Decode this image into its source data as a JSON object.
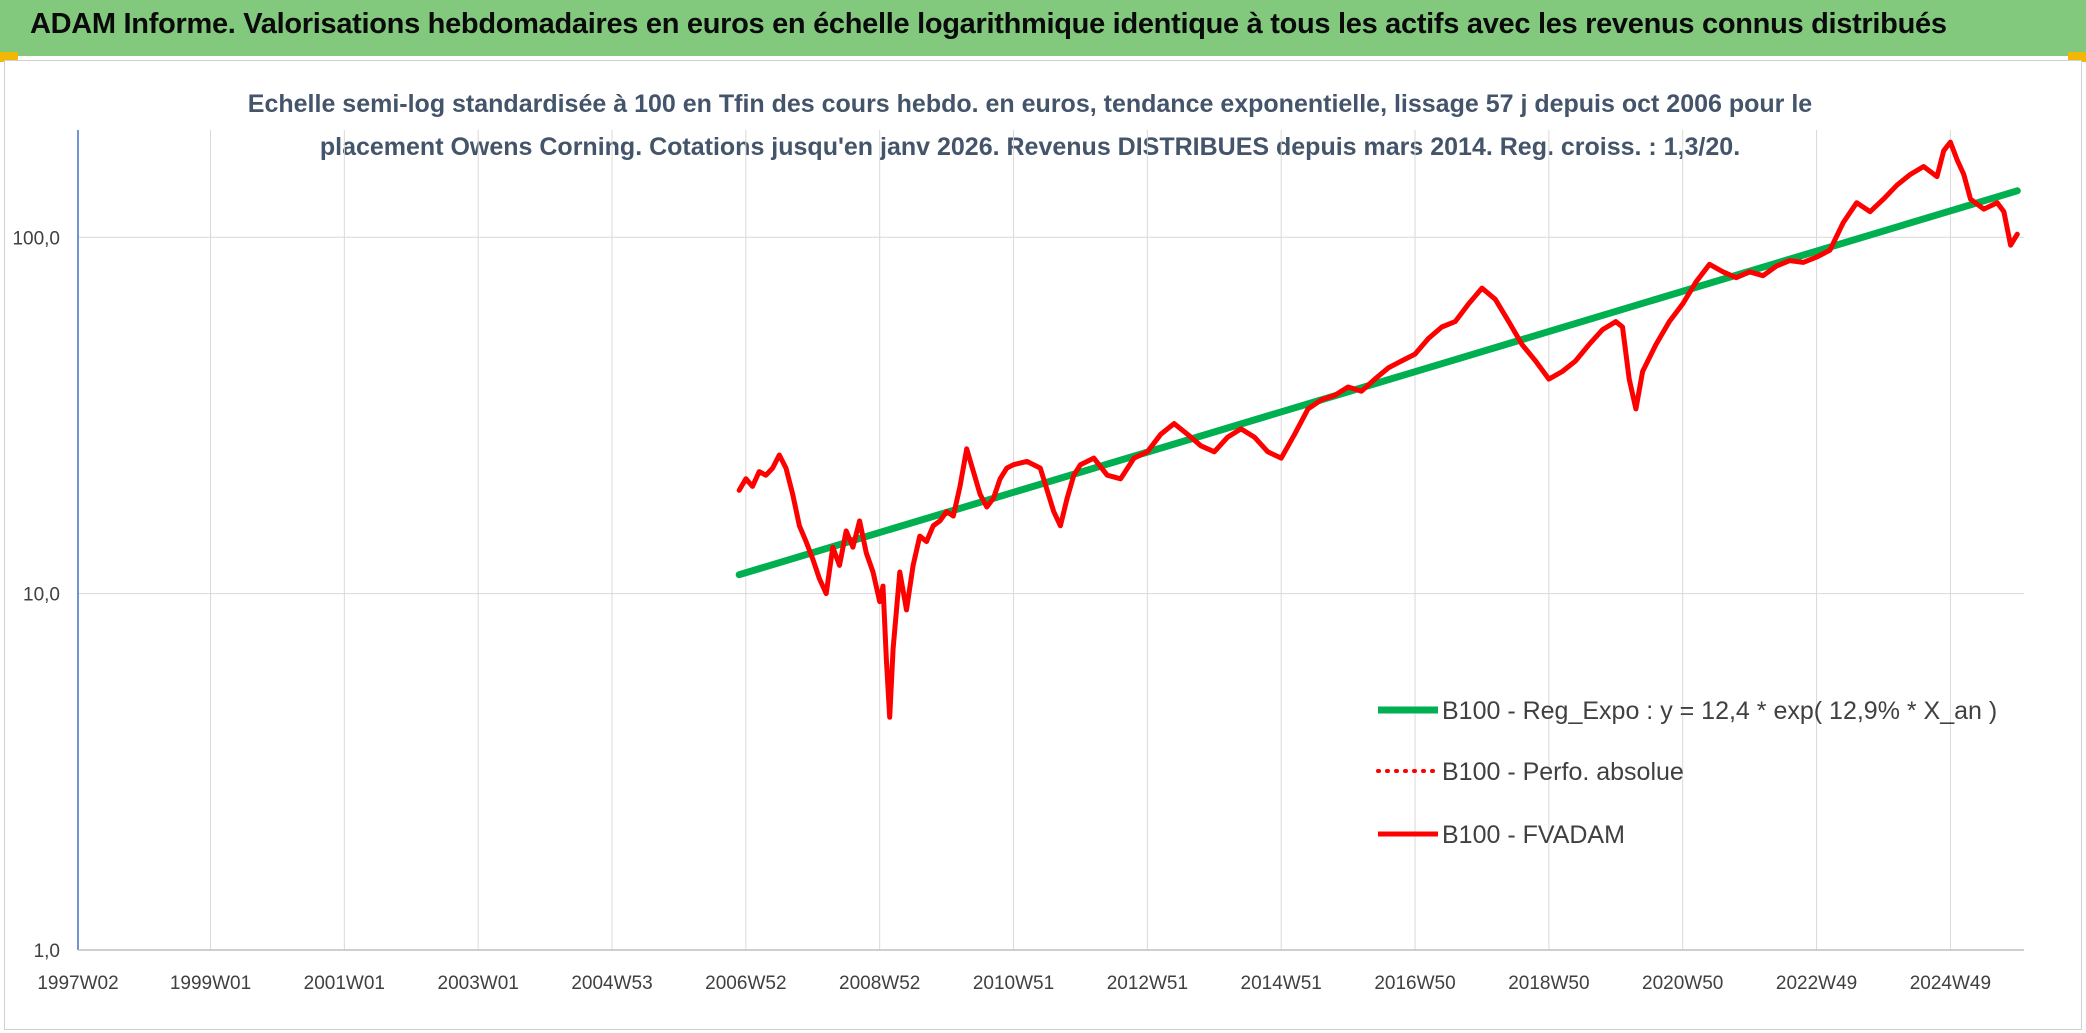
{
  "header": {
    "title": "ADAM Informe. Valorisations hebdomadaires en euros en échelle logarithmique identique à tous les actifs avec les revenus connus distribués"
  },
  "colors": {
    "banner": "#82c97e",
    "regression": "#00b050",
    "fvadam": "#ff0000",
    "axis": "#4472c4",
    "grid": "#d9d9d9",
    "corner": "#f2b705"
  },
  "chart_data": {
    "type": "line",
    "title_line1": "Echelle semi-log standardisée à 100 en Tfin des cours hebdo. en euros, tendance exponentielle, lissage 57 j depuis oct 2006 pour le",
    "title_line2": "placement Owens Corning. Cotations jusqu'en janv 2026. Revenus DISTRIBUES depuis mars 2014. Reg. croiss. : 1,3/20.",
    "xlabel": "",
    "ylabel": "",
    "y_scale": "log",
    "ylim": [
      1,
      200
    ],
    "xlim": [
      1997.02,
      2026.1
    ],
    "y_ticks": [
      {
        "value": 1,
        "label": "1,0"
      },
      {
        "value": 10,
        "label": "10,0"
      },
      {
        "value": 100,
        "label": "100,0"
      }
    ],
    "x_ticks": [
      {
        "value": 1997.02,
        "label": "1997W02"
      },
      {
        "value": 1999.0,
        "label": "1999W01"
      },
      {
        "value": 2001.0,
        "label": "2001W01"
      },
      {
        "value": 2003.0,
        "label": "2003W01"
      },
      {
        "value": 2005.0,
        "label": "2004W53"
      },
      {
        "value": 2007.0,
        "label": "2006W52"
      },
      {
        "value": 2009.0,
        "label": "2008W52"
      },
      {
        "value": 2011.0,
        "label": "2010W51"
      },
      {
        "value": 2013.0,
        "label": "2012W51"
      },
      {
        "value": 2015.0,
        "label": "2014W51"
      },
      {
        "value": 2017.0,
        "label": "2016W50"
      },
      {
        "value": 2019.0,
        "label": "2018W50"
      },
      {
        "value": 2021.0,
        "label": "2020W50"
      },
      {
        "value": 2023.0,
        "label": "2022W49"
      },
      {
        "value": 2025.0,
        "label": "2024W49"
      }
    ],
    "grid": true,
    "legend_position": "bottom-right",
    "series": [
      {
        "name": "B100 - Reg_Expo : y = 12,4 * exp( 12,9% *  X_an )",
        "style": "solid-thick",
        "color": "#00b050",
        "x": [
          2006.9,
          2026.0
        ],
        "y": [
          11.3,
          135
        ]
      },
      {
        "name": "B100 - Perfo. absolue",
        "style": "dotted",
        "color": "#ff0000",
        "x": [],
        "y": []
      },
      {
        "name": "B100 - FVADAM",
        "style": "solid",
        "color": "#ff0000",
        "x": [
          2006.9,
          2007.0,
          2007.1,
          2007.2,
          2007.3,
          2007.4,
          2007.5,
          2007.6,
          2007.7,
          2007.8,
          2007.9,
          2008.0,
          2008.1,
          2008.2,
          2008.3,
          2008.4,
          2008.5,
          2008.6,
          2008.7,
          2008.8,
          2008.9,
          2009.0,
          2009.05,
          2009.1,
          2009.15,
          2009.2,
          2009.3,
          2009.4,
          2009.5,
          2009.6,
          2009.7,
          2009.8,
          2009.9,
          2010.0,
          2010.1,
          2010.2,
          2010.3,
          2010.4,
          2010.5,
          2010.6,
          2010.7,
          2010.8,
          2010.9,
          2011.0,
          2011.2,
          2011.4,
          2011.6,
          2011.7,
          2011.8,
          2011.9,
          2012.0,
          2012.2,
          2012.4,
          2012.6,
          2012.8,
          2013.0,
          2013.2,
          2013.4,
          2013.6,
          2013.8,
          2014.0,
          2014.2,
          2014.4,
          2014.6,
          2014.8,
          2015.0,
          2015.2,
          2015.4,
          2015.6,
          2015.8,
          2016.0,
          2016.2,
          2016.4,
          2016.6,
          2016.8,
          2017.0,
          2017.2,
          2017.4,
          2017.6,
          2017.8,
          2018.0,
          2018.2,
          2018.4,
          2018.6,
          2018.8,
          2019.0,
          2019.2,
          2019.4,
          2019.6,
          2019.8,
          2020.0,
          2020.1,
          2020.2,
          2020.3,
          2020.4,
          2020.6,
          2020.8,
          2021.0,
          2021.2,
          2021.4,
          2021.6,
          2021.8,
          2022.0,
          2022.2,
          2022.4,
          2022.6,
          2022.8,
          2023.0,
          2023.2,
          2023.4,
          2023.6,
          2023.8,
          2024.0,
          2024.2,
          2024.4,
          2024.6,
          2024.8,
          2024.9,
          2025.0,
          2025.1,
          2025.2,
          2025.3,
          2025.5,
          2025.7,
          2025.8,
          2025.9,
          2026.0
        ],
        "y": [
          19.5,
          21.0,
          20.0,
          22.0,
          21.5,
          22.5,
          24.5,
          22.5,
          19.0,
          15.5,
          14.0,
          12.5,
          11.0,
          10.0,
          13.5,
          12.0,
          15.0,
          13.5,
          16.0,
          13.0,
          11.5,
          9.5,
          10.5,
          6.5,
          4.5,
          7.0,
          11.5,
          9.0,
          12.0,
          14.5,
          14.0,
          15.5,
          16.0,
          17.0,
          16.5,
          20.0,
          25.5,
          22.0,
          19.0,
          17.5,
          18.5,
          21.0,
          22.5,
          23.0,
          23.5,
          22.5,
          17.0,
          15.5,
          18.5,
          21.5,
          23.0,
          24.0,
          21.5,
          21.0,
          24.0,
          25.0,
          28.0,
          30.0,
          28.0,
          26.0,
          25.0,
          27.5,
          29.0,
          27.5,
          25.0,
          24.0,
          28.0,
          33.0,
          35.0,
          36.0,
          38.0,
          37.0,
          40.0,
          43.0,
          45.0,
          47.0,
          52.0,
          56.0,
          58.0,
          65.0,
          72.0,
          67.0,
          58.0,
          50.0,
          45.0,
          40.0,
          42.0,
          45.0,
          50.0,
          55.0,
          58.0,
          56.0,
          40.0,
          33.0,
          42.0,
          50.0,
          58.0,
          65.0,
          75.0,
          84.0,
          80.0,
          77.0,
          80.0,
          78.0,
          83.0,
          86.0,
          85.0,
          88.0,
          92.0,
          110.0,
          125.0,
          118.0,
          128.0,
          140.0,
          150.0,
          158.0,
          148.0,
          175.0,
          185.0,
          165.0,
          150.0,
          128.0,
          120.0,
          125.0,
          118.0,
          95.0,
          102.0
        ]
      }
    ]
  }
}
